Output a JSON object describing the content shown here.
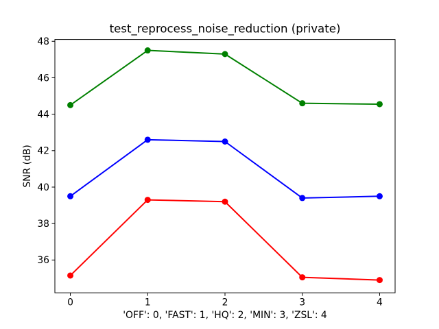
{
  "figure": {
    "background_color": "#ffffff",
    "frame_color": "#000000",
    "text_color": "#000000"
  },
  "chart_data": {
    "type": "line",
    "title": "test_reprocess_noise_reduction (private)",
    "xlabel": "'OFF': 0, 'FAST': 1, 'HQ': 2, 'MIN': 3, 'ZSL': 4",
    "ylabel": "SNR (dB)",
    "x": [
      0,
      1,
      2,
      3,
      4
    ],
    "x_tick_labels": [
      "0",
      "1",
      "2",
      "3",
      "4"
    ],
    "y_ticks": [
      36,
      38,
      40,
      42,
      44,
      46,
      48
    ],
    "xlim": [
      -0.2,
      4.2
    ],
    "ylim": [
      34.2,
      48.1
    ],
    "grid": false,
    "legend": null,
    "marker": "circle",
    "series": [
      {
        "name": "green",
        "color": "#008000",
        "values": [
          44.5,
          47.5,
          47.3,
          44.6,
          44.55
        ]
      },
      {
        "name": "blue",
        "color": "#0000ff",
        "values": [
          39.5,
          42.6,
          42.5,
          39.4,
          39.5
        ]
      },
      {
        "name": "red",
        "color": "#ff0000",
        "values": [
          35.15,
          39.3,
          39.2,
          35.05,
          34.9
        ]
      }
    ]
  }
}
